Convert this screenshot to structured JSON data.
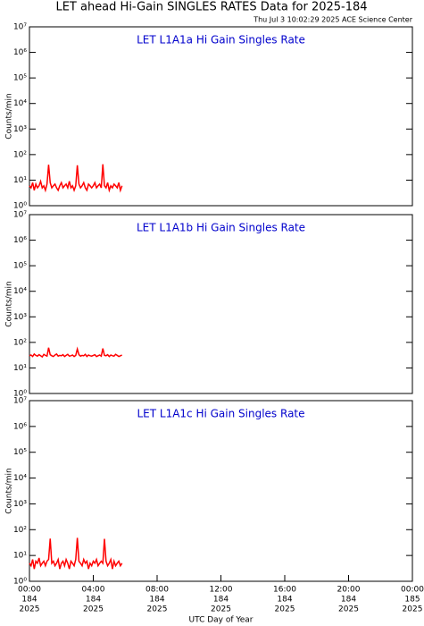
{
  "title": "LET ahead Hi-Gain SINGLES RATES Data for 2025-184",
  "timestamp": "Thu Jul  3 10:02:29 2025 ACE Science Center",
  "chart_data": [
    {
      "type": "line",
      "title": "LET L1A1a Hi Gain Singles Rate",
      "ylabel": "Counts/min",
      "log_y": true,
      "ylim": [
        1,
        10000000
      ],
      "yticks": [
        {
          "value": 1,
          "label": "10⁰"
        },
        {
          "value": 10,
          "label": "10¹"
        },
        {
          "value": 100,
          "label": "10²"
        },
        {
          "value": 1000,
          "label": "10³"
        },
        {
          "value": 10000,
          "label": "10⁴"
        },
        {
          "value": 100000,
          "label": "10⁵"
        },
        {
          "value": 1000000,
          "label": "10⁶"
        },
        {
          "value": 10000000,
          "label": "10⁷"
        }
      ],
      "xlim": [
        0,
        24
      ],
      "x": [
        0,
        0.1,
        0.2,
        0.3,
        0.4,
        0.5,
        0.6,
        0.7,
        0.8,
        0.9,
        1,
        1.1,
        1.2,
        1.3,
        1.4,
        1.5,
        1.6,
        1.7,
        1.8,
        1.9,
        2,
        2.1,
        2.2,
        2.3,
        2.4,
        2.5,
        2.6,
        2.7,
        2.8,
        2.9,
        3,
        3.1,
        3.2,
        3.3,
        3.4,
        3.5,
        3.6,
        3.7,
        3.8,
        3.9,
        4,
        4.1,
        4.2,
        4.3,
        4.4,
        4.5,
        4.6,
        4.7,
        4.8,
        4.9,
        5,
        5.1,
        5.2,
        5.3,
        5.4,
        5.5,
        5.6,
        5.7,
        5.8
      ],
      "series": [
        {
          "color": "#ff0000",
          "values": [
            6,
            5,
            8,
            4,
            7,
            5,
            6,
            9,
            5,
            6,
            4,
            7,
            40,
            8,
            5,
            6,
            7,
            5,
            4,
            6,
            8,
            5,
            6,
            7,
            5,
            9,
            5,
            6,
            4,
            6,
            38,
            7,
            5,
            6,
            8,
            5,
            4,
            7,
            6,
            5,
            6,
            8,
            5,
            6,
            7,
            5,
            42,
            6,
            5,
            8,
            4,
            6,
            5,
            7,
            6,
            5,
            8,
            4,
            6
          ]
        }
      ]
    },
    {
      "type": "line",
      "title": "LET L1A1b Hi Gain Singles Rate",
      "ylabel": "Counts/min",
      "log_y": true,
      "ylim": [
        1,
        10000000
      ],
      "yticks": [
        {
          "value": 1,
          "label": "10⁰"
        },
        {
          "value": 10,
          "label": "10¹"
        },
        {
          "value": 100,
          "label": "10²"
        },
        {
          "value": 1000,
          "label": "10³"
        },
        {
          "value": 10000,
          "label": "10⁴"
        },
        {
          "value": 100000,
          "label": "10⁵"
        },
        {
          "value": 1000000,
          "label": "10⁶"
        },
        {
          "value": 10000000,
          "label": "10⁷"
        }
      ],
      "xlim": [
        0,
        24
      ],
      "x": [
        0,
        0.1,
        0.2,
        0.3,
        0.4,
        0.5,
        0.6,
        0.7,
        0.8,
        0.9,
        1,
        1.1,
        1.2,
        1.3,
        1.4,
        1.5,
        1.6,
        1.7,
        1.8,
        1.9,
        2,
        2.1,
        2.2,
        2.3,
        2.4,
        2.5,
        2.6,
        2.7,
        2.8,
        2.9,
        3,
        3.1,
        3.2,
        3.3,
        3.4,
        3.5,
        3.6,
        3.7,
        3.8,
        3.9,
        4,
        4.1,
        4.2,
        4.3,
        4.4,
        4.5,
        4.6,
        4.7,
        4.8,
        4.9,
        5,
        5.1,
        5.2,
        5.3,
        5.4,
        5.5,
        5.6,
        5.7,
        5.8
      ],
      "series": [
        {
          "color": "#ff0000",
          "values": [
            30,
            32,
            28,
            35,
            31,
            29,
            33,
            30,
            27,
            34,
            31,
            29,
            62,
            33,
            30,
            28,
            32,
            35,
            29,
            31,
            30,
            33,
            28,
            31,
            34,
            29,
            30,
            32,
            28,
            31,
            55,
            33,
            29,
            31,
            30,
            34,
            28,
            32,
            30,
            29,
            31,
            33,
            28,
            30,
            32,
            29,
            58,
            31,
            30,
            33,
            28,
            32,
            30,
            29,
            34,
            31,
            28,
            30,
            32
          ]
        }
      ]
    },
    {
      "type": "line",
      "title": "LET L1A1c Hi Gain Singles Rate",
      "ylabel": "Counts/min",
      "xlabel": "UTC Day of Year",
      "log_y": true,
      "ylim": [
        1,
        10000000
      ],
      "yticks": [
        {
          "value": 1,
          "label": "10⁰"
        },
        {
          "value": 10,
          "label": "10¹"
        },
        {
          "value": 100,
          "label": "10²"
        },
        {
          "value": 1000,
          "label": "10³"
        },
        {
          "value": 10000,
          "label": "10⁴"
        },
        {
          "value": 100000,
          "label": "10⁵"
        },
        {
          "value": 1000000,
          "label": "10⁶"
        },
        {
          "value": 10000000,
          "label": "10⁷"
        }
      ],
      "xlim": [
        0,
        24
      ],
      "xticks": [
        {
          "value": 0,
          "label": "00:00"
        },
        {
          "value": 4,
          "label": "04:00"
        },
        {
          "value": 8,
          "label": "08:00"
        },
        {
          "value": 12,
          "label": "12:00"
        },
        {
          "value": 16,
          "label": "16:00"
        },
        {
          "value": 20,
          "label": "20:00"
        },
        {
          "value": 24,
          "label": "00:00"
        }
      ],
      "xtick_sublabels": [
        [
          "184",
          "2025"
        ],
        [
          "184",
          "2025"
        ],
        [
          "184",
          "2025"
        ],
        [
          "184",
          "2025"
        ],
        [
          "184",
          "2025"
        ],
        [
          "184",
          "2025"
        ],
        [
          "185",
          "2025"
        ]
      ],
      "x": [
        0,
        0.1,
        0.2,
        0.3,
        0.4,
        0.5,
        0.6,
        0.7,
        0.8,
        0.9,
        1,
        1.1,
        1.2,
        1.3,
        1.4,
        1.5,
        1.6,
        1.7,
        1.8,
        1.9,
        2,
        2.1,
        2.2,
        2.3,
        2.4,
        2.5,
        2.6,
        2.7,
        2.8,
        2.9,
        3,
        3.1,
        3.2,
        3.3,
        3.4,
        3.5,
        3.6,
        3.7,
        3.8,
        3.9,
        4,
        4.1,
        4.2,
        4.3,
        4.4,
        4.5,
        4.6,
        4.7,
        4.8,
        4.9,
        5,
        5.1,
        5.2,
        5.3,
        5.4,
        5.5,
        5.6,
        5.7,
        5.8
      ],
      "series": [
        {
          "color": "#ff0000",
          "values": [
            5,
            4,
            7,
            3,
            6,
            5,
            8,
            4,
            5,
            6,
            4,
            6,
            7,
            45,
            5,
            6,
            4,
            5,
            7,
            3,
            5,
            6,
            4,
            7,
            5,
            3,
            6,
            5,
            4,
            7,
            48,
            6,
            5,
            4,
            7,
            5,
            6,
            3,
            5,
            4,
            6,
            5,
            7,
            4,
            5,
            6,
            5,
            44,
            6,
            4,
            5,
            7,
            3,
            6,
            4,
            5,
            6,
            4,
            5
          ]
        }
      ]
    }
  ]
}
